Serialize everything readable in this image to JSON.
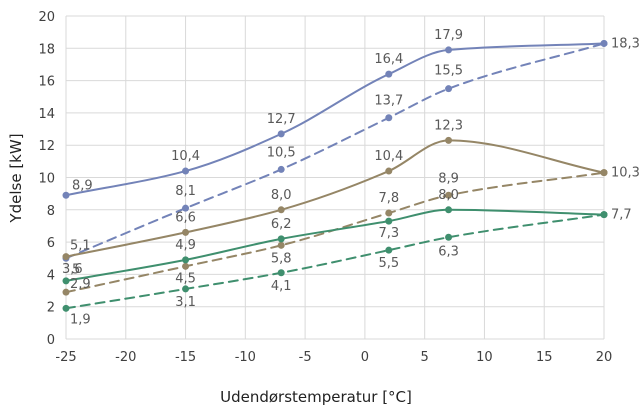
{
  "chart_data": {
    "type": "line",
    "xlabel": "Udendørstemperatur [°C]",
    "ylabel": "Ydelse [kW]",
    "xlim": [
      -25,
      20
    ],
    "ylim": [
      0,
      20
    ],
    "x_ticks": [
      -25,
      -20,
      -15,
      -10,
      -5,
      0,
      5,
      10,
      15,
      20
    ],
    "y_ticks": [
      0,
      2,
      4,
      6,
      8,
      10,
      12,
      14,
      16,
      18,
      20
    ],
    "x_tick_labels": [
      "-25",
      "-20",
      "-15",
      "-10",
      "-5",
      "0",
      "5",
      "10",
      "15",
      "20"
    ],
    "y_tick_labels": [
      "0",
      "2",
      "4",
      "6",
      "8",
      "10",
      "12",
      "14",
      "16",
      "18",
      "20"
    ],
    "grid": true,
    "legend": "none",
    "series": [
      {
        "color": "#7383b8",
        "style": "solid",
        "x": [
          -25,
          -15,
          -7,
          2,
          7,
          20
        ],
        "y": [
          8.9,
          10.4,
          12.7,
          16.4,
          17.9,
          18.3
        ],
        "labels": [
          "8,9",
          "10,4",
          "12,7",
          "16,4",
          "17,9",
          "18,3"
        ]
      },
      {
        "color": "#7383b8",
        "style": "dashed",
        "x": [
          -25,
          -15,
          -7,
          2,
          7,
          20
        ],
        "y": [
          5.0,
          8.1,
          10.5,
          13.7,
          15.5,
          18.3
        ],
        "labels": [
          "5",
          "8,1",
          "10,5",
          "13,7",
          "15,5",
          ""
        ]
      },
      {
        "color": "#958666",
        "style": "solid",
        "x": [
          -25,
          -15,
          -7,
          2,
          7,
          20
        ],
        "y": [
          5.1,
          6.6,
          8.0,
          10.4,
          12.3,
          10.3
        ],
        "labels": [
          "5,1",
          "6,6",
          "8,0",
          "10,4",
          "12,3",
          "10,3"
        ]
      },
      {
        "color": "#958666",
        "style": "dashed",
        "x": [
          -25,
          -15,
          -7,
          2,
          7,
          20
        ],
        "y": [
          2.9,
          4.5,
          5.8,
          7.8,
          8.9,
          10.3
        ],
        "labels": [
          "2,9",
          "4,5",
          "5,8",
          "7,8",
          "8,9",
          ""
        ]
      },
      {
        "color": "#3f8f6e",
        "style": "solid",
        "x": [
          -25,
          -15,
          -7,
          2,
          7,
          20
        ],
        "y": [
          3.6,
          4.9,
          6.2,
          7.3,
          8.0,
          7.7
        ],
        "labels": [
          "3,6",
          "4,9",
          "6,2",
          "7,3",
          "8,0",
          "7,7"
        ]
      },
      {
        "color": "#3f8f6e",
        "style": "dashed",
        "x": [
          -25,
          -15,
          -7,
          2,
          7,
          20
        ],
        "y": [
          1.9,
          3.1,
          4.1,
          5.5,
          6.3,
          7.7
        ],
        "labels": [
          "1,9",
          "3,1",
          "4,1",
          "5,5",
          "6,3",
          ""
        ]
      }
    ]
  }
}
